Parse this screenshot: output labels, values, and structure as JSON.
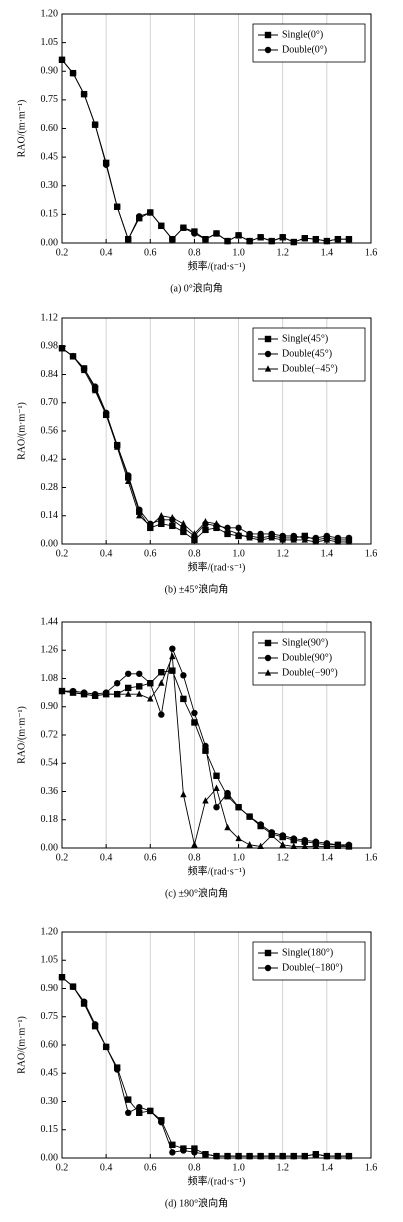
{
  "chart_data": [
    {
      "type": "line",
      "y_label": "RAO/(m·m⁻¹)",
      "x_label": "频率/(rad·s⁻¹)",
      "caption": "(a) 0°浪向角",
      "grid": "x",
      "legend": "upper right",
      "xlim": [
        0.2,
        1.6
      ],
      "xticks": [
        0.2,
        0.4,
        0.6,
        0.8,
        {
          "value": 1,
          "label": "1.0"
        },
        1.2,
        1.4,
        1.6
      ],
      "ylim": [
        0,
        1.2
      ],
      "yticks": [
        {
          "value": 0,
          "label": "0.00"
        },
        {
          "value": 0.15,
          "label": "0.15"
        },
        {
          "value": 0.3,
          "label": "0.30"
        },
        {
          "value": 0.45,
          "label": "0.45"
        },
        {
          "value": 0.6,
          "label": "0.60"
        },
        {
          "value": 0.75,
          "label": "0.75"
        },
        {
          "value": 0.9,
          "label": "0.90"
        },
        {
          "value": 1.05,
          "label": "1.05"
        },
        {
          "value": 1.2,
          "label": "1.20"
        }
      ],
      "x": [
        0.2,
        0.25,
        0.3,
        0.35,
        0.4,
        0.45,
        0.5,
        0.55,
        0.6,
        0.65,
        0.7,
        0.75,
        0.8,
        0.85,
        0.9,
        0.95,
        1.0,
        1.05,
        1.1,
        1.15,
        1.2,
        1.25,
        1.3,
        1.35,
        1.4,
        1.45,
        1.5
      ],
      "series": [
        {
          "name": "Single(0°)",
          "color": "#000000",
          "marker": "square",
          "values": [
            0.96,
            0.89,
            0.78,
            0.62,
            0.42,
            0.19,
            0.02,
            0.13,
            0.16,
            0.09,
            0.02,
            0.08,
            0.06,
            0.02,
            0.05,
            0.01,
            0.04,
            0.01,
            0.03,
            0.01,
            0.03,
            0.005,
            0.025,
            0.02,
            0.01,
            0.02,
            0.02
          ]
        },
        {
          "name": "Double(0°)",
          "color": "#000000",
          "marker": "circle",
          "values": [
            0.96,
            0.89,
            0.78,
            0.62,
            0.41,
            0.19,
            0.02,
            0.14,
            0.16,
            0.09,
            0.02,
            0.08,
            0.05,
            0.02,
            0.05,
            0.01,
            0.04,
            0.01,
            0.03,
            0.01,
            0.03,
            0.005,
            0.025,
            0.02,
            0.01,
            0.02,
            0.02
          ]
        }
      ]
    },
    {
      "type": "line",
      "y_label": "RAO/(m·m⁻¹)",
      "x_label": "频率/(rad·s⁻¹)",
      "caption": "(b) ±45°浪向角",
      "grid": "x",
      "legend": "upper right",
      "xlim": [
        0.2,
        1.6
      ],
      "xticks": [
        0.2,
        0.4,
        0.6,
        0.8,
        {
          "value": 1,
          "label": "1.0"
        },
        1.2,
        1.4,
        1.6
      ],
      "ylim": [
        0,
        1.12
      ],
      "yticks": [
        {
          "value": 0,
          "label": "0.00"
        },
        0.14,
        0.28,
        0.42,
        0.56,
        {
          "value": 0.7,
          "label": "0.70"
        },
        0.84,
        0.98,
        1.12
      ],
      "x": [
        0.2,
        0.25,
        0.3,
        0.35,
        0.4,
        0.45,
        0.5,
        0.55,
        0.6,
        0.65,
        0.7,
        0.75,
        0.8,
        0.85,
        0.9,
        0.95,
        1.0,
        1.05,
        1.1,
        1.15,
        1.2,
        1.25,
        1.3,
        1.35,
        1.4,
        1.45,
        1.5
      ],
      "series": [
        {
          "name": "Single(45°)",
          "color": "#000000",
          "marker": "square",
          "values": [
            0.97,
            0.93,
            0.87,
            0.77,
            0.64,
            0.49,
            0.33,
            0.16,
            0.08,
            0.1,
            0.09,
            0.06,
            0.02,
            0.07,
            0.08,
            0.05,
            0.04,
            0.04,
            0.03,
            0.04,
            0.03,
            0.03,
            0.04,
            0.02,
            0.03,
            0.02,
            0.02
          ]
        },
        {
          "name": "Double(45°)",
          "color": "#000000",
          "marker": "circle",
          "values": [
            0.97,
            0.93,
            0.87,
            0.78,
            0.65,
            0.49,
            0.34,
            0.17,
            0.1,
            0.12,
            0.12,
            0.08,
            0.04,
            0.1,
            0.09,
            0.08,
            0.08,
            0.05,
            0.05,
            0.05,
            0.04,
            0.04,
            0.03,
            0.03,
            0.04,
            0.03,
            0.03
          ]
        },
        {
          "name": "Double(−45°)",
          "color": "#000000",
          "marker": "triangle",
          "values": [
            0.97,
            0.93,
            0.86,
            0.76,
            0.64,
            0.48,
            0.31,
            0.14,
            0.09,
            0.14,
            0.13,
            0.1,
            0.05,
            0.11,
            0.1,
            0.07,
            0.05,
            0.03,
            0.02,
            0.03,
            0.02,
            0.02,
            0.02,
            0.01,
            0.02,
            0.01,
            0.01
          ]
        }
      ]
    },
    {
      "type": "line",
      "y_label": "RAO/(m·m⁻¹)",
      "x_label": "频率/(rad·s⁻¹)",
      "caption": "(c) ±90°浪向角",
      "grid": "x",
      "legend": "upper right",
      "xlim": [
        0.2,
        1.6
      ],
      "xticks": [
        0.2,
        0.4,
        0.6,
        0.8,
        {
          "value": 1,
          "label": "1.0"
        },
        1.2,
        1.4,
        1.6
      ],
      "ylim": [
        0,
        1.44
      ],
      "yticks": [
        {
          "value": 0,
          "label": "0.00"
        },
        0.18,
        0.36,
        0.54,
        0.72,
        {
          "value": 0.9,
          "label": "0.90"
        },
        1.08,
        1.26,
        1.44
      ],
      "x": [
        0.2,
        0.25,
        0.3,
        0.35,
        0.4,
        0.45,
        0.5,
        0.55,
        0.6,
        0.65,
        0.7,
        0.75,
        0.8,
        0.85,
        0.9,
        0.95,
        1.0,
        1.05,
        1.1,
        1.15,
        1.2,
        1.25,
        1.3,
        1.35,
        1.4,
        1.45,
        1.5
      ],
      "series": [
        {
          "name": "Single(90°)",
          "color": "#000000",
          "marker": "square",
          "values": [
            1.0,
            0.99,
            0.98,
            0.97,
            0.98,
            0.98,
            1.02,
            1.03,
            1.05,
            1.12,
            1.13,
            0.95,
            0.8,
            0.62,
            0.46,
            0.33,
            0.26,
            0.2,
            0.14,
            0.09,
            0.07,
            0.05,
            0.04,
            0.03,
            0.02,
            0.02,
            0.01
          ]
        },
        {
          "name": "Double(90°)",
          "color": "#000000",
          "marker": "circle",
          "values": [
            1.0,
            1.0,
            0.99,
            0.98,
            0.99,
            1.05,
            1.11,
            1.11,
            1.05,
            0.85,
            1.27,
            1.1,
            0.86,
            0.65,
            0.26,
            0.35,
            0.26,
            0.2,
            0.15,
            0.1,
            0.08,
            0.06,
            0.05,
            0.04,
            0.03,
            0.02,
            0.02
          ]
        },
        {
          "name": "Double(−90°)",
          "color": "#000000",
          "marker": "triangle",
          "values": [
            1.0,
            0.99,
            0.98,
            0.97,
            0.98,
            0.98,
            0.98,
            0.98,
            0.95,
            1.05,
            1.22,
            0.34,
            0.02,
            0.3,
            0.38,
            0.13,
            0.06,
            0.02,
            0.01,
            0.08,
            0.02,
            0.01,
            0.01,
            0.01,
            0.01,
            0.01,
            0.01
          ]
        }
      ]
    },
    {
      "type": "line",
      "y_label": "RAO/(m·m⁻¹)",
      "x_label": "频率/(rad·s⁻¹)",
      "caption": "(d) 180°浪向角",
      "grid": "x",
      "legend": "upper right",
      "xlim": [
        0.2,
        1.6
      ],
      "xticks": [
        0.2,
        0.4,
        0.6,
        0.8,
        {
          "value": 1,
          "label": "1.0"
        },
        1.2,
        1.4,
        1.6
      ],
      "ylim": [
        0,
        1.2
      ],
      "yticks": [
        {
          "value": 0,
          "label": "0.00"
        },
        {
          "value": 0.15,
          "label": "0.15"
        },
        {
          "value": 0.3,
          "label": "0.30"
        },
        {
          "value": 0.45,
          "label": "0.45"
        },
        {
          "value": 0.6,
          "label": "0.60"
        },
        {
          "value": 0.75,
          "label": "0.75"
        },
        {
          "value": 0.9,
          "label": "0.90"
        },
        {
          "value": 1.05,
          "label": "1.05"
        },
        {
          "value": 1.2,
          "label": "1.20"
        }
      ],
      "x": [
        0.2,
        0.25,
        0.3,
        0.35,
        0.4,
        0.45,
        0.5,
        0.55,
        0.6,
        0.65,
        0.7,
        0.75,
        0.8,
        0.85,
        0.9,
        0.95,
        1.0,
        1.05,
        1.1,
        1.15,
        1.2,
        1.25,
        1.3,
        1.35,
        1.4,
        1.45,
        1.5
      ],
      "series": [
        {
          "name": "Single(180°)",
          "color": "#000000",
          "marker": "square",
          "values": [
            0.96,
            0.91,
            0.82,
            0.7,
            0.59,
            0.48,
            0.31,
            0.24,
            0.25,
            0.2,
            0.07,
            0.05,
            0.05,
            0.02,
            0.01,
            0.01,
            0.01,
            0.01,
            0.01,
            0.01,
            0.01,
            0.01,
            0.01,
            0.02,
            0.01,
            0.01,
            0.01
          ]
        },
        {
          "name": "Double(−180°)",
          "color": "#000000",
          "marker": "circle",
          "values": [
            0.96,
            0.91,
            0.83,
            0.71,
            0.59,
            0.47,
            0.24,
            0.27,
            0.25,
            0.19,
            0.03,
            0.04,
            0.03,
            0.02,
            0.01,
            0.01,
            0.01,
            0.01,
            0.01,
            0.01,
            0.01,
            0.01,
            0.01,
            0.02,
            0.01,
            0.01,
            0.01
          ]
        }
      ]
    }
  ]
}
